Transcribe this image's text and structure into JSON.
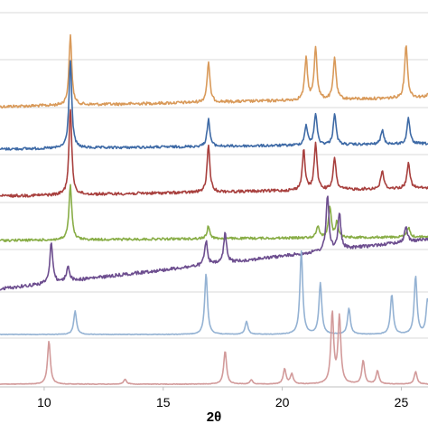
{
  "chart_data": {
    "type": "line",
    "title": "",
    "xlabel": "2θ",
    "ylabel": "",
    "xlim": [
      7.5,
      26.5
    ],
    "x_ticks": [
      10,
      15,
      20,
      25
    ],
    "x_tick_labels": [
      "10",
      "15",
      "20",
      "25"
    ],
    "grid": true,
    "legend": "none",
    "stacked": true,
    "series": [
      {
        "color": "#d99a5a",
        "baseline_intensity": 0.0,
        "peaks": [
          [
            11.1,
            0.87
          ],
          [
            16.9,
            0.5
          ],
          [
            21.0,
            0.52
          ],
          [
            21.4,
            0.66
          ],
          [
            22.2,
            0.53
          ],
          [
            25.2,
            0.68
          ],
          [
            26.4,
            0.6
          ]
        ]
      },
      {
        "color": "#3e6aa6",
        "baseline_intensity": 0.0,
        "peaks": [
          [
            11.1,
            0.97
          ],
          [
            16.9,
            0.3
          ],
          [
            21.0,
            0.22
          ],
          [
            21.4,
            0.35
          ],
          [
            22.2,
            0.35
          ],
          [
            24.2,
            0.16
          ],
          [
            25.3,
            0.28
          ]
        ]
      },
      {
        "color": "#a8403e",
        "baseline_intensity": 0.0,
        "peaks": [
          [
            11.1,
            0.97
          ],
          [
            16.9,
            0.52
          ],
          [
            20.9,
            0.45
          ],
          [
            21.4,
            0.53
          ],
          [
            22.2,
            0.36
          ],
          [
            24.2,
            0.21
          ],
          [
            25.3,
            0.3
          ]
        ]
      },
      {
        "color": "#88ad46",
        "baseline_intensity": 0.0,
        "peaks": [
          [
            11.1,
            0.77
          ],
          [
            16.9,
            0.18
          ],
          [
            21.5,
            0.17
          ],
          [
            22.0,
            0.43
          ],
          [
            22.3,
            0.22
          ],
          [
            25.3,
            0.14
          ]
        ]
      },
      {
        "color": "#6d4e8f",
        "baseline_intensity": 0.0,
        "peaks": [
          [
            10.3,
            0.48
          ],
          [
            11.0,
            0.18
          ],
          [
            16.8,
            0.28
          ],
          [
            17.6,
            0.35
          ],
          [
            21.9,
            0.65
          ],
          [
            22.4,
            0.42
          ],
          [
            25.2,
            0.18
          ]
        ]
      },
      {
        "color": "#94b2d3",
        "baseline_intensity": 0.0,
        "peaks": [
          [
            11.3,
            0.27
          ],
          [
            16.8,
            0.7
          ],
          [
            18.5,
            0.15
          ],
          [
            20.8,
            0.96
          ],
          [
            21.6,
            0.59
          ],
          [
            22.8,
            0.3
          ],
          [
            24.6,
            0.46
          ],
          [
            25.6,
            0.67
          ],
          [
            26.1,
            0.4
          ]
        ]
      },
      {
        "color": "#d29a9a",
        "baseline_intensity": 0.0,
        "peaks": [
          [
            10.2,
            0.52
          ],
          [
            13.4,
            0.06
          ],
          [
            17.6,
            0.4
          ],
          [
            18.7,
            0.05
          ],
          [
            20.1,
            0.18
          ],
          [
            20.4,
            0.12
          ],
          [
            22.1,
            0.85
          ],
          [
            22.4,
            0.8
          ],
          [
            23.4,
            0.28
          ],
          [
            24.0,
            0.16
          ],
          [
            25.6,
            0.15
          ]
        ]
      }
    ]
  }
}
